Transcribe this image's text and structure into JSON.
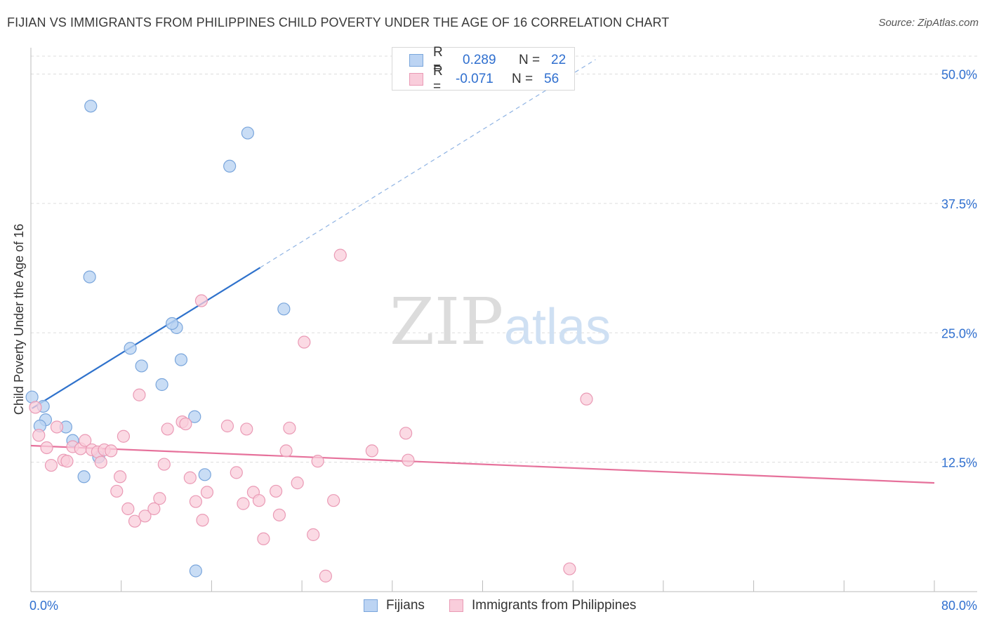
{
  "title": "FIJIAN VS IMMIGRANTS FROM PHILIPPINES CHILD POVERTY UNDER THE AGE OF 16 CORRELATION CHART",
  "source": "Source: ZipAtlas.com",
  "watermark": {
    "zip": "ZIP",
    "atlas": "atlas"
  },
  "colors": {
    "fijians_fill": "#bcd4f3",
    "fijians_stroke": "#7aa6dc",
    "fijians_line": "#2f72cc",
    "phil_fill": "#f9cddb",
    "phil_stroke": "#ea9ab5",
    "phil_line": "#e6719b",
    "grid": "#dddddd",
    "tick_label": "#2f6fcf"
  },
  "legend": {
    "fijians": {
      "r_label": "R =",
      "r_value": "0.289",
      "n_label": "N =",
      "n_value": "22"
    },
    "phil": {
      "r_label": "R =",
      "r_value": "-0.071",
      "n_label": "N =",
      "n_value": "56"
    }
  },
  "chart_data": {
    "type": "scatter",
    "title": "FIJIAN VS IMMIGRANTS FROM PHILIPPINES CHILD POVERTY UNDER THE AGE OF 16 CORRELATION CHART",
    "xlabel": "",
    "ylabel": "Child Poverty Under the Age of 16",
    "xlim": [
      0,
      80
    ],
    "ylim": [
      0,
      52
    ],
    "x_tick_labels": [
      "0.0%",
      "80.0%"
    ],
    "y_ticks": [
      12.5,
      25.0,
      37.5,
      50.0
    ],
    "y_tick_labels": [
      "12.5%",
      "25.0%",
      "37.5%",
      "50.0%"
    ],
    "grid": true,
    "legend_position": "top-center",
    "series": [
      {
        "name": "Fijians",
        "points": [
          [
            0.1,
            18.8
          ],
          [
            1.1,
            17.9
          ],
          [
            1.3,
            16.6
          ],
          [
            0.8,
            16.0
          ],
          [
            3.1,
            15.9
          ],
          [
            3.7,
            14.6
          ],
          [
            4.7,
            11.1
          ],
          [
            6.0,
            13.0
          ],
          [
            5.2,
            30.4
          ],
          [
            5.3,
            46.9
          ],
          [
            8.8,
            23.5
          ],
          [
            9.8,
            21.8
          ],
          [
            11.6,
            20.0
          ],
          [
            12.9,
            25.5
          ],
          [
            12.5,
            25.9
          ],
          [
            13.3,
            22.4
          ],
          [
            14.5,
            16.9
          ],
          [
            15.4,
            11.3
          ],
          [
            17.6,
            41.1
          ],
          [
            19.2,
            44.3
          ],
          [
            22.4,
            27.3
          ],
          [
            14.6,
            2.0
          ]
        ],
        "trendline": {
          "x": [
            0.1,
            20.3
          ],
          "y": [
            17.7,
            31.3
          ],
          "dashed_extension_to": [
            50.0,
            51.4
          ]
        }
      },
      {
        "name": "Immigrants from Philippines",
        "points": [
          [
            0.4,
            17.8
          ],
          [
            0.7,
            15.1
          ],
          [
            1.4,
            13.9
          ],
          [
            1.8,
            12.2
          ],
          [
            2.3,
            15.9
          ],
          [
            2.9,
            12.7
          ],
          [
            3.2,
            12.6
          ],
          [
            3.7,
            14.0
          ],
          [
            4.4,
            13.8
          ],
          [
            4.8,
            14.6
          ],
          [
            5.4,
            13.7
          ],
          [
            5.9,
            13.5
          ],
          [
            6.2,
            12.5
          ],
          [
            6.5,
            13.7
          ],
          [
            7.1,
            13.6
          ],
          [
            7.6,
            9.7
          ],
          [
            7.9,
            11.1
          ],
          [
            8.2,
            15.0
          ],
          [
            8.6,
            8.0
          ],
          [
            9.2,
            6.8
          ],
          [
            9.6,
            19.0
          ],
          [
            10.1,
            7.3
          ],
          [
            10.9,
            8.0
          ],
          [
            11.4,
            9.0
          ],
          [
            11.8,
            12.3
          ],
          [
            12.1,
            15.7
          ],
          [
            13.4,
            16.4
          ],
          [
            13.7,
            16.2
          ],
          [
            14.1,
            11.0
          ],
          [
            14.6,
            8.7
          ],
          [
            15.2,
            6.9
          ],
          [
            15.6,
            9.6
          ],
          [
            17.4,
            16.0
          ],
          [
            18.2,
            11.5
          ],
          [
            18.8,
            8.5
          ],
          [
            19.1,
            15.7
          ],
          [
            19.7,
            9.6
          ],
          [
            20.2,
            8.8
          ],
          [
            20.6,
            5.1
          ],
          [
            21.7,
            9.7
          ],
          [
            22.0,
            7.4
          ],
          [
            22.6,
            13.6
          ],
          [
            22.9,
            15.8
          ],
          [
            23.6,
            10.5
          ],
          [
            24.2,
            24.1
          ],
          [
            25.0,
            5.5
          ],
          [
            25.4,
            12.6
          ],
          [
            26.1,
            1.5
          ],
          [
            26.8,
            8.8
          ],
          [
            27.4,
            32.5
          ],
          [
            30.2,
            13.6
          ],
          [
            33.2,
            15.3
          ],
          [
            33.4,
            12.7
          ],
          [
            15.1,
            28.1
          ],
          [
            49.2,
            18.6
          ],
          [
            47.7,
            2.2
          ]
        ],
        "trendline": {
          "x": [
            0,
            80
          ],
          "y": [
            14.1,
            10.5
          ]
        }
      }
    ]
  },
  "legend_bottom": {
    "fijians": "Fijians",
    "phil": "Immigrants from Philippines"
  }
}
